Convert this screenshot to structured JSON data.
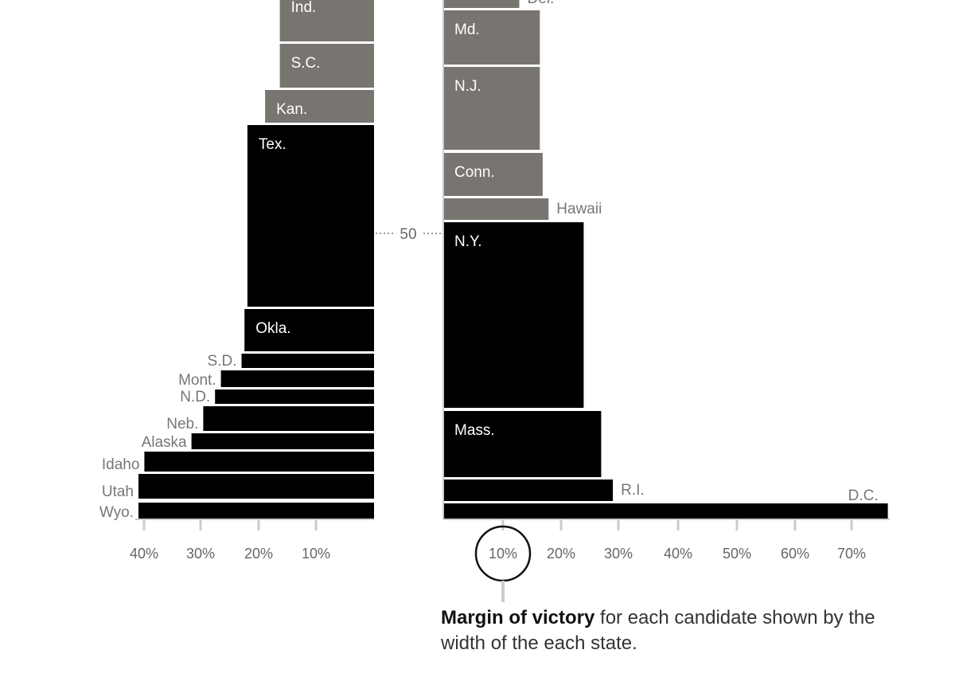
{
  "chart_data": {
    "type": "bar",
    "colors": {
      "solid": "#000000",
      "lean": "#787470",
      "axis": "#cccccc",
      "label": "#777777",
      "inside": "#ffffff"
    },
    "left_panel": {
      "direction": "leftward",
      "xlim": [
        0,
        40
      ],
      "ticks": [
        "40%",
        "30%",
        "20%",
        "10%"
      ],
      "bars": [
        {
          "label": "Ind.",
          "value": 16,
          "tone": "lean",
          "label_pos": "inside"
        },
        {
          "label": "S.C.",
          "value": 16,
          "tone": "lean",
          "label_pos": "inside"
        },
        {
          "label": "Kan.",
          "value": 18.5,
          "tone": "lean",
          "label_pos": "inside"
        },
        {
          "label": "Tex.",
          "value": 21.5,
          "tone": "solid",
          "label_pos": "inside"
        },
        {
          "label": "Okla.",
          "value": 22,
          "tone": "solid",
          "label_pos": "inside"
        },
        {
          "label": "S.D.",
          "value": 22.5,
          "tone": "solid",
          "label_pos": "outside"
        },
        {
          "label": "Mont.",
          "value": 26,
          "tone": "solid",
          "label_pos": "outside"
        },
        {
          "label": "N.D.",
          "value": 27,
          "tone": "solid",
          "label_pos": "outside"
        },
        {
          "label": "Neb.",
          "value": 29,
          "tone": "solid",
          "label_pos": "outside"
        },
        {
          "label": "Alaska",
          "value": 31,
          "tone": "solid",
          "label_pos": "outside"
        },
        {
          "label": "Idaho",
          "value": 39,
          "tone": "solid",
          "label_pos": "outside"
        },
        {
          "label": "Utah",
          "value": 40,
          "tone": "solid",
          "label_pos": "outside"
        },
        {
          "label": "Wyo.",
          "value": 40,
          "tone": "solid",
          "label_pos": "outside"
        }
      ]
    },
    "right_panel": {
      "direction": "rightward",
      "xlim": [
        0,
        76
      ],
      "ticks": [
        "10%",
        "20%",
        "30%",
        "40%",
        "50%",
        "60%",
        "70%"
      ],
      "bars": [
        {
          "label": "Del.",
          "value": 13,
          "tone": "lean",
          "label_pos": "outside"
        },
        {
          "label": "Md.",
          "value": 16.5,
          "tone": "lean",
          "label_pos": "inside"
        },
        {
          "label": "N.J.",
          "value": 16.5,
          "tone": "lean",
          "label_pos": "inside"
        },
        {
          "label": "Conn.",
          "value": 17,
          "tone": "lean",
          "label_pos": "inside"
        },
        {
          "label": "Hawaii",
          "value": 18,
          "tone": "lean",
          "label_pos": "outside"
        },
        {
          "label": "N.Y.",
          "value": 24,
          "tone": "solid",
          "label_pos": "inside"
        },
        {
          "label": "Mass.",
          "value": 27,
          "tone": "solid",
          "label_pos": "inside"
        },
        {
          "label": "R.I.",
          "value": 29,
          "tone": "solid",
          "label_pos": "outside"
        },
        {
          "label": "D.C.",
          "value": 76,
          "tone": "solid",
          "label_pos": "outside-above"
        }
      ]
    },
    "center_marker": "50",
    "highlight_tick": "10%"
  },
  "caption": {
    "bold": "Margin of victory",
    "rest": " for each candidate shown by the width of the each state."
  }
}
